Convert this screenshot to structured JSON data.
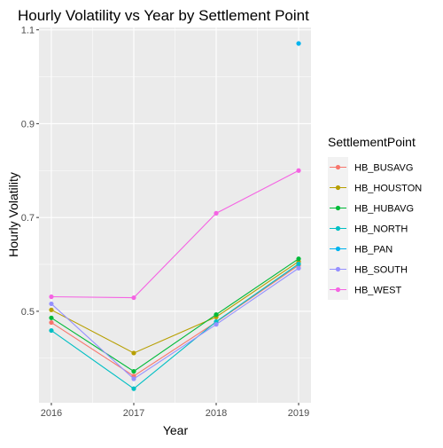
{
  "chart_data": {
    "type": "line",
    "title": "Hourly Volatility vs Year by Settlement Point",
    "xlabel": "Year",
    "ylabel": "Hourly Volatility",
    "x": [
      2016,
      2017,
      2018,
      2019
    ],
    "x_tick_labels": [
      "2016",
      "2017",
      "2018",
      "2019"
    ],
    "y_ticks": [
      0.5,
      0.7,
      0.9,
      1.1
    ],
    "y_tick_labels": [
      "0.5",
      "0.7",
      "0.9",
      "1.1"
    ],
    "xlim": [
      2015.85,
      2019.15
    ],
    "ylim": [
      0.305,
      1.105
    ],
    "grid": true,
    "panel_background": "#ebebeb",
    "legend": {
      "title": "SettlementPoint",
      "position": "right"
    },
    "series": [
      {
        "name": "HB_BUSAVG",
        "color": "#F8766D",
        "values": [
          0.476,
          0.362,
          0.477,
          0.598
        ]
      },
      {
        "name": "HB_HOUSTON",
        "color": "#B79F00",
        "values": [
          0.503,
          0.411,
          0.488,
          0.606
        ]
      },
      {
        "name": "HB_HUBAVG",
        "color": "#00BA38",
        "values": [
          0.486,
          0.372,
          0.493,
          0.612
        ]
      },
      {
        "name": "HB_NORTH",
        "color": "#00BFC4",
        "values": [
          0.459,
          0.335,
          0.478,
          0.601
        ]
      },
      {
        "name": "HB_PAN",
        "color": "#00B4EF",
        "values": [
          null,
          null,
          null,
          1.071
        ]
      },
      {
        "name": "HB_SOUTH",
        "color": "#9590FF",
        "values": [
          0.516,
          0.356,
          0.472,
          0.592
        ]
      },
      {
        "name": "HB_WEST",
        "color": "#F564E3",
        "values": [
          0.531,
          0.529,
          0.709,
          0.8
        ]
      }
    ]
  }
}
